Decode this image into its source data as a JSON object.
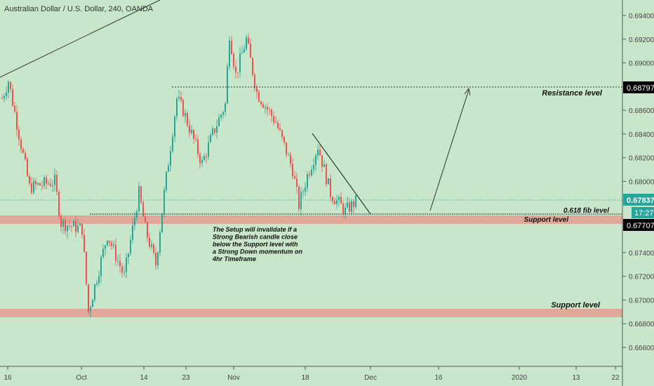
{
  "chart_data": {
    "type": "candlestick",
    "title": "Australian Dollar / U.S. Dollar, 240, OANDA",
    "ylim": [
      0.6652,
      0.6952
    ],
    "y_ticks": [
      "0.69400",
      "0.69200",
      "0.69000",
      "0.68600",
      "0.68400",
      "0.68200",
      "0.68000",
      "0.67400",
      "0.67200",
      "0.67000",
      "0.66800",
      "0.66600"
    ],
    "x_ticks": [
      "16",
      "Oct",
      "14",
      "23",
      "Nov",
      "18",
      "Dec",
      "16",
      "2020",
      "13",
      "22"
    ],
    "price_path": [
      [
        0,
        0.687
      ],
      [
        3,
        0.6885
      ],
      [
        13,
        0.6795
      ],
      [
        25,
        0.68
      ],
      [
        28,
        0.6765
      ],
      [
        38,
        0.676
      ],
      [
        41,
        0.669
      ],
      [
        50,
        0.6755
      ],
      [
        58,
        0.672
      ],
      [
        65,
        0.679
      ],
      [
        68,
        0.676
      ],
      [
        73,
        0.673
      ],
      [
        77,
        0.679
      ],
      [
        83,
        0.687
      ],
      [
        86,
        0.686
      ],
      [
        95,
        0.6815
      ],
      [
        100,
        0.684
      ],
      [
        106,
        0.6865
      ],
      [
        108,
        0.6925
      ],
      [
        111,
        0.689
      ],
      [
        116,
        0.692
      ],
      [
        121,
        0.6875
      ],
      [
        130,
        0.685
      ],
      [
        138,
        0.681
      ],
      [
        141,
        0.678
      ],
      [
        145,
        0.6805
      ],
      [
        150,
        0.683
      ],
      [
        156,
        0.679
      ],
      [
        163,
        0.6775
      ],
      [
        168,
        0.6783
      ]
    ],
    "levels": {
      "resistance": {
        "price": "0.68797",
        "label": "Resistance level"
      },
      "current": {
        "price": "0.67837",
        "countdown": "17:27"
      },
      "support": {
        "price": "0.67707",
        "label": "Support level"
      },
      "fib": {
        "label": "0.618 fib level"
      },
      "lower_support": {
        "label": "Support level"
      }
    },
    "note": [
      "The Setup will invalidate If a",
      "Strong Bearish candle close",
      "below the Support level with",
      "a Strong Down momentum on",
      "4hr Timeframe"
    ],
    "colors": {
      "up": "#26a69a",
      "down": "#ef5350",
      "zone": "#e0a898",
      "bg": "#c8e6c9",
      "badge": "#26a69a"
    }
  }
}
